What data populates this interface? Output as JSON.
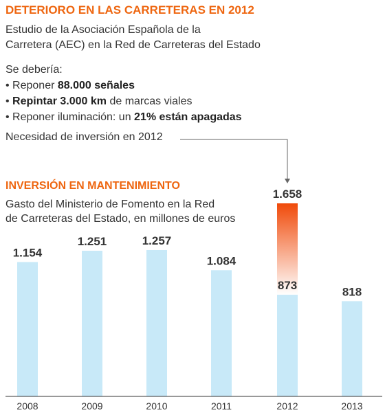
{
  "header": {
    "title": "DETERIORO EN LAS CARRETERAS EN 2012",
    "lead_line1": "Estudio de la Asociación Española de la",
    "lead_line2": "Carretera (AEC) en la Red de Carreteras del Estado"
  },
  "should": {
    "intro": "Se debería:",
    "items": [
      {
        "pre": "• Reponer ",
        "bold": "88.000 señales",
        "post": ""
      },
      {
        "pre": "• ",
        "bold": "Repintar 3.000 km",
        "post": " de marcas viales"
      },
      {
        "pre": "• Reponer iluminación: un ",
        "bold": "21% están apagadas",
        "post": ""
      }
    ]
  },
  "need_label": "Necesidad de inversión en 2012",
  "chart_title": "INVERSIÓN EN MANTENIMIENTO",
  "chart_subtitle_line1": "Gasto del Ministerio de Fomento en la Red",
  "chart_subtitle_line2": "de Carreteras del Estado, en millones de euros",
  "colors": {
    "accent": "#ee6610",
    "bar": "#c8e9f8",
    "need_gradient_top": "#f04a0a",
    "need_gradient_bottom": "#ffffff"
  },
  "chart_data": {
    "type": "bar",
    "categories": [
      "2008",
      "2009",
      "2010",
      "2011",
      "2012",
      "2013"
    ],
    "values": [
      1154,
      1251,
      1257,
      1084,
      873,
      818
    ],
    "value_labels": [
      "1.154",
      "1.251",
      "1.257",
      "1.084",
      "873",
      "818"
    ],
    "need": {
      "category": "2012",
      "value": 1658,
      "label": "1.658"
    },
    "ylim": [
      0,
      1658
    ],
    "grid": false
  }
}
